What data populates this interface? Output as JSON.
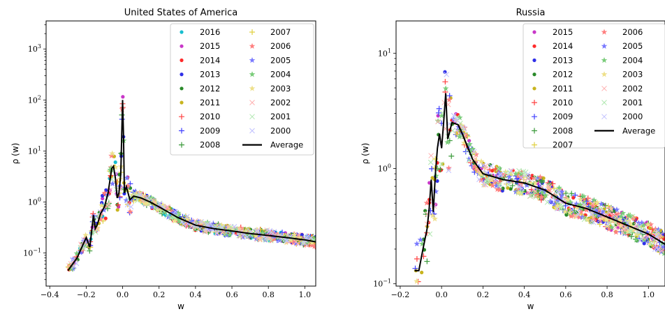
{
  "chart_data": [
    {
      "type": "scatter",
      "title": "United States of America",
      "xlabel": "w",
      "ylabel": "ρ (w)",
      "xlim": [
        -0.42,
        1.06
      ],
      "ylim_log10": [
        -1.65,
        3.55
      ],
      "yscale": "log",
      "grid": false,
      "legend_placement": "top-right",
      "x_ticks": [
        -0.4,
        -0.2,
        0.0,
        0.2,
        0.4,
        0.6,
        0.8,
        1.0
      ],
      "x_tick_labels": [
        "−0.4",
        "−0.2",
        "0.0",
        "0.2",
        "0.4",
        "0.6",
        "0.8",
        "1.0"
      ],
      "y_ticks_log10": [
        -1,
        0,
        1,
        2,
        3
      ],
      "y_tick_labels": [
        "10^-1",
        "10^0",
        "10^1",
        "10^2",
        "10^3"
      ],
      "legend_columns": [
        [
          "2016",
          "2015",
          "2014",
          "2013",
          "2012",
          "2011",
          "2010",
          "2009",
          "2008"
        ],
        [
          "2007",
          "2006",
          "2005",
          "2004",
          "2003",
          "2002",
          "2001",
          "2000",
          "Average"
        ]
      ],
      "average_line": {
        "x": [
          -0.3,
          -0.25,
          -0.2,
          -0.18,
          -0.16,
          -0.15,
          -0.14,
          -0.12,
          -0.1,
          -0.08,
          -0.06,
          -0.05,
          -0.04,
          -0.03,
          -0.02,
          -0.01,
          0.0,
          0.005,
          0.01,
          0.02,
          0.04,
          0.06,
          0.1,
          0.15,
          0.2,
          0.3,
          0.4,
          0.5,
          0.6,
          0.7,
          0.8,
          0.9,
          1.0,
          1.06
        ],
        "y": [
          0.045,
          0.08,
          0.2,
          0.13,
          0.55,
          0.3,
          0.35,
          0.6,
          0.8,
          1.5,
          4.5,
          5.0,
          3.0,
          1.2,
          1.5,
          3.5,
          100.0,
          20.0,
          1.5,
          2.0,
          1.1,
          1.3,
          1.2,
          1.0,
          0.8,
          0.5,
          0.35,
          0.3,
          0.27,
          0.24,
          0.22,
          0.2,
          0.18,
          0.165
        ]
      }
    },
    {
      "type": "scatter",
      "title": "Russia",
      "xlabel": "w",
      "ylabel": "ρ (w)",
      "xlim": [
        -0.22,
        1.08
      ],
      "ylim_log10": [
        -1.02,
        1.28
      ],
      "yscale": "log",
      "grid": false,
      "legend_placement": "top-right",
      "x_ticks": [
        -0.2,
        0.0,
        0.2,
        0.4,
        0.6,
        0.8,
        1.0
      ],
      "x_tick_labels": [
        "−0.2",
        "0.0",
        "0.2",
        "0.4",
        "0.6",
        "0.8",
        "1.0"
      ],
      "y_ticks_log10": [
        -1,
        0,
        1
      ],
      "y_tick_labels": [
        "10^-1",
        "10^0",
        "10^1"
      ],
      "legend_columns": [
        [
          "2015",
          "2014",
          "2013",
          "2012",
          "2011",
          "2010",
          "2009",
          "2008",
          "2007"
        ],
        [
          "2006",
          "2005",
          "2004",
          "2003",
          "2002",
          "2001",
          "2000",
          "Average"
        ]
      ],
      "average_line": {
        "x": [
          -0.13,
          -0.11,
          -0.09,
          -0.07,
          -0.06,
          -0.05,
          -0.04,
          -0.03,
          -0.02,
          -0.01,
          0.0,
          0.01,
          0.02,
          0.03,
          0.05,
          0.08,
          0.1,
          0.15,
          0.2,
          0.3,
          0.4,
          0.5,
          0.6,
          0.7,
          0.8,
          0.9,
          1.0,
          1.08
        ],
        "y": [
          0.13,
          0.13,
          0.2,
          0.3,
          0.45,
          0.8,
          0.42,
          0.9,
          1.5,
          2.0,
          1.5,
          2.5,
          4.5,
          1.8,
          2.5,
          2.4,
          2.0,
          1.2,
          0.9,
          0.8,
          0.75,
          0.65,
          0.5,
          0.45,
          0.38,
          0.32,
          0.27,
          0.22
        ]
      }
    }
  ],
  "series_colors": {
    "2016": "#17becf",
    "2015": "#c837c8",
    "2014": "#ff2b2b",
    "2013": "#2f2fe8",
    "2012": "#2a8a2a",
    "2011": "#c8b41e",
    "2010": "#ff4040",
    "2009": "#4040ff",
    "2008": "#3a9a3a",
    "2007": "#e0d040",
    "2006": "#ff8080",
    "2005": "#7a7aff",
    "2004": "#7acc7a",
    "2003": "#eee08a",
    "2002": "#ffb0b0",
    "2001": "#b0e8b0",
    "2000": "#c0c0ff",
    "Average": "#000000"
  },
  "series_markers": {
    "2016": "dot",
    "2015": "dot",
    "2014": "dot",
    "2013": "dot",
    "2012": "dot",
    "2011": "dot",
    "2010": "plus",
    "2009": "plus",
    "2008": "plus",
    "2007": "plus",
    "2006": "star",
    "2005": "star",
    "2004": "star",
    "2003": "star",
    "2002": "x",
    "2001": "x",
    "2000": "x",
    "Average": "line"
  }
}
